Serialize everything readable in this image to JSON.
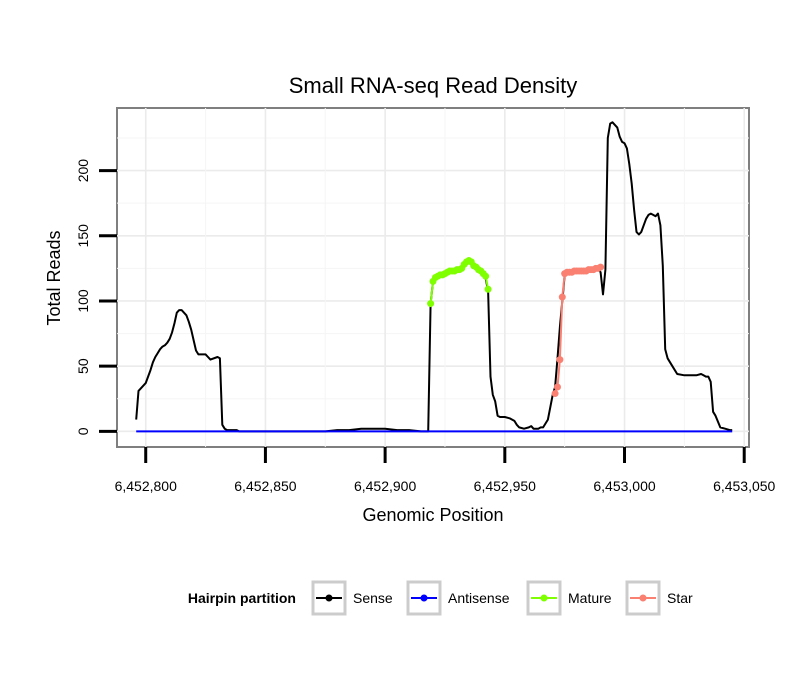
{
  "chart_data": {
    "type": "line",
    "title": "Small RNA-seq Read Density",
    "xlabel": "Genomic Position",
    "ylabel": "Total Reads",
    "xlim": [
      6452788,
      6453052
    ],
    "ylim": [
      -12,
      248
    ],
    "x_ticks": [
      6452800,
      6452850,
      6452900,
      6452950,
      6453000,
      6453050
    ],
    "x_tick_labels": [
      "6,452,800",
      "6,452,850",
      "6,452,900",
      "6,452,950",
      "6,453,000",
      "6,453,050"
    ],
    "y_ticks": [
      0,
      50,
      100,
      150,
      200
    ],
    "y_tick_labels": [
      "0",
      "50",
      "100",
      "150",
      "200"
    ],
    "grid": true,
    "legend": {
      "title": "Hairpin partition",
      "position": "bottom",
      "entries": [
        "Sense",
        "Antisense",
        "Mature",
        "Star"
      ]
    },
    "series": [
      {
        "name": "Sense",
        "color": "#000000",
        "markers": false,
        "x": [
          6452796,
          6452797,
          6452799,
          6452800,
          6452801,
          6452802,
          6452803,
          6452804,
          6452805,
          6452806,
          6452807,
          6452808,
          6452809,
          6452810,
          6452811,
          6452812,
          6452813,
          6452814,
          6452815,
          6452816,
          6452817,
          6452818,
          6452819,
          6452820,
          6452821,
          6452822,
          6452823,
          6452824,
          6452825,
          6452826,
          6452827,
          6452830,
          6452831,
          6452832,
          6452833,
          6452834,
          6452835,
          6452836,
          6452837,
          6452838,
          6452839,
          6452840,
          6452845,
          6452846,
          6452850,
          6452855,
          6452860,
          6452865,
          6452870,
          6452875,
          6452880,
          6452885,
          6452890,
          6452895,
          6452900,
          6452905,
          6452910,
          6452915,
          6452918,
          6452919,
          6452920,
          6452921,
          6452922,
          6452924,
          6452926,
          6452928,
          6452930,
          6452932,
          6452934,
          6452935,
          6452936,
          6452937,
          6452938,
          6452939,
          6452940,
          6452941,
          6452942,
          6452943,
          6452944,
          6452945,
          6452946,
          6452947,
          6452948,
          6452950,
          6452952,
          6452954,
          6452955,
          6452956,
          6452958,
          6452960,
          6452961,
          6452962,
          6452963,
          6452964,
          6452965,
          6452966,
          6452968,
          6452970,
          6452971,
          6452972,
          6452973,
          6452974,
          6452975,
          6452976,
          6452978,
          6452980,
          6452982,
          6452984,
          6452986,
          6452988,
          6452989,
          6452990,
          6452991,
          6452992,
          6452993,
          6452994,
          6452995,
          6452996,
          6452997,
          6452998,
          6452999,
          6453000,
          6453001,
          6453002,
          6453003,
          6453004,
          6453005,
          6453006,
          6453007,
          6453008,
          6453009,
          6453010,
          6453011,
          6453012,
          6453013,
          6453014,
          6453015,
          6453016,
          6453017,
          6453018,
          6453020,
          6453022,
          6453025,
          6453028,
          6453030,
          6453032,
          6453033,
          6453034,
          6453035,
          6453036,
          6453037,
          6453038,
          6453040,
          6453042,
          6453044,
          6453045
        ],
        "y": [
          9,
          31,
          35,
          37,
          42,
          47,
          53,
          57,
          60,
          63,
          65,
          66,
          68,
          71,
          76,
          83,
          91,
          93,
          93,
          91,
          89,
          84,
          78,
          70,
          62,
          59,
          59,
          59,
          59,
          57,
          55,
          57,
          56,
          5,
          2,
          1,
          1,
          1,
          1,
          1,
          0,
          0,
          0,
          0,
          0,
          0,
          0,
          0,
          0,
          0,
          1,
          1,
          2,
          2,
          2,
          1,
          1,
          0,
          0,
          98,
          115,
          118,
          120,
          121,
          122,
          123,
          124,
          125,
          129,
          130,
          130,
          128,
          126,
          124,
          122,
          120,
          117,
          108,
          42,
          28,
          23,
          12,
          11,
          11,
          10,
          8,
          5,
          3,
          2,
          3,
          4,
          2,
          2,
          2,
          3,
          3,
          9,
          28,
          34,
          56,
          80,
          100,
          120,
          122,
          122,
          123,
          123,
          124,
          124,
          126,
          125,
          122,
          105,
          124,
          225,
          236,
          237,
          235,
          233,
          226,
          222,
          221,
          217,
          205,
          190,
          170,
          153,
          151,
          153,
          158,
          163,
          166,
          167,
          166,
          165,
          167,
          158,
          127,
          63,
          56,
          50,
          44,
          43,
          43,
          43,
          44,
          43,
          42,
          42,
          38,
          15,
          12,
          3,
          2,
          1,
          1
        ],
        "label_text": ""
      },
      {
        "name": "Antisense",
        "color": "#0000ff",
        "markers": false,
        "x": [
          6452796,
          6453045
        ],
        "y": [
          0,
          0
        ]
      },
      {
        "name": "Mature",
        "color": "#7fff00",
        "markers": true,
        "x": [
          6452919,
          6452920,
          6452921,
          6452922,
          6452923,
          6452924,
          6452925,
          6452926,
          6452927,
          6452928,
          6452929,
          6452930,
          6452931,
          6452932,
          6452933,
          6452934,
          6452935,
          6452936,
          6452937,
          6452938,
          6452939,
          6452940,
          6452941,
          6452942,
          6452943
        ],
        "y": [
          98,
          115,
          118,
          119,
          120,
          120,
          121,
          122,
          123,
          123,
          123,
          124,
          124,
          125,
          128,
          130,
          131,
          130,
          127,
          126,
          124,
          123,
          121,
          119,
          109
        ]
      },
      {
        "name": "Star",
        "color": "#fa8072",
        "markers": true,
        "x": [
          6452971,
          6452972,
          6452973,
          6452974,
          6452975,
          6452976,
          6452977,
          6452978,
          6452979,
          6452980,
          6452981,
          6452982,
          6452983,
          6452984,
          6452985,
          6452986,
          6452987,
          6452988,
          6452989,
          6452990
        ],
        "y": [
          29,
          34,
          55,
          103,
          121,
          122,
          122,
          122,
          123,
          123,
          123,
          123,
          123,
          123,
          124,
          124,
          124,
          125,
          125,
          126
        ]
      }
    ]
  }
}
